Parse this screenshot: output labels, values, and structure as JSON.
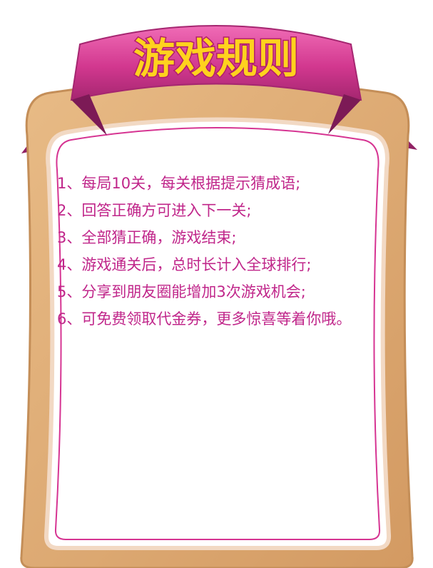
{
  "title": "游戏规则",
  "colors": {
    "frame": "#dca874",
    "frame_edge": "#c48e58",
    "panel_border": "#d63492",
    "ribbon": "#d2388f",
    "ribbon_dark": "#8e1f62",
    "title_fill": "#ffd21e",
    "title_stroke": "#b11f6a",
    "text": "#c0268a"
  },
  "rules": [
    {
      "num": "1、",
      "text": "每局10关，每关根据提示猜成语;"
    },
    {
      "num": "2、",
      "text": "回答正确方可进入下一关;"
    },
    {
      "num": "3、",
      "text": "全部猜正确，游戏结束;"
    },
    {
      "num": "4、",
      "text": "游戏通关后，总时长计入全球排行;"
    },
    {
      "num": "5、",
      "text": "分享到朋友圈能增加3次游戏机会;"
    },
    {
      "num": "6、",
      "text": "可免费领取代金券，更多惊喜等着你哦。"
    }
  ]
}
